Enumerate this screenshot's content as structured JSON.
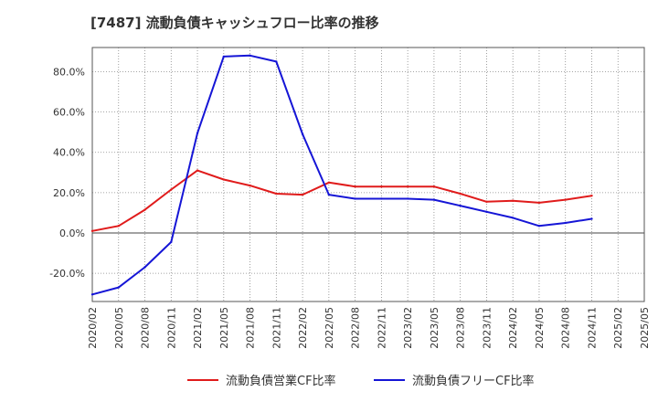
{
  "chart_data": {
    "type": "line",
    "title": "[7487]  流動負債キャッシュフロー比率の推移",
    "x": [
      "2020/02",
      "2020/05",
      "2020/08",
      "2020/11",
      "2021/02",
      "2021/05",
      "2021/08",
      "2021/11",
      "2022/02",
      "2022/05",
      "2022/08",
      "2022/11",
      "2023/02",
      "2023/05",
      "2023/08",
      "2023/11",
      "2024/02",
      "2024/05",
      "2024/08",
      "2024/11",
      "2025/02",
      "2025/05"
    ],
    "ylim": [
      -34,
      92
    ],
    "yticks": [
      -20,
      0,
      20,
      40,
      60,
      80
    ],
    "ytick_labels": [
      "-20.0%",
      "0.0%",
      "20.0%",
      "40.0%",
      "60.0%",
      "80.0%"
    ],
    "series": [
      {
        "name": "流動負債営業CF比率",
        "color": "#e01b1b",
        "values": [
          1.0,
          3.5,
          11.5,
          21.5,
          31.0,
          26.5,
          23.5,
          19.5,
          19.0,
          25.0,
          23.0,
          23.0,
          23.0,
          23.0,
          19.5,
          15.5,
          16.0,
          15.0,
          16.5,
          18.5,
          null,
          null
        ]
      },
      {
        "name": "流動負債フリーCF比率",
        "color": "#1515d6",
        "values": [
          -30.5,
          -27.0,
          -17.0,
          -4.5,
          49.5,
          87.5,
          88.0,
          85.0,
          49.0,
          19.0,
          17.0,
          17.0,
          17.0,
          16.5,
          13.5,
          10.5,
          7.5,
          3.5,
          5.0,
          7.0,
          null,
          null
        ]
      }
    ]
  }
}
